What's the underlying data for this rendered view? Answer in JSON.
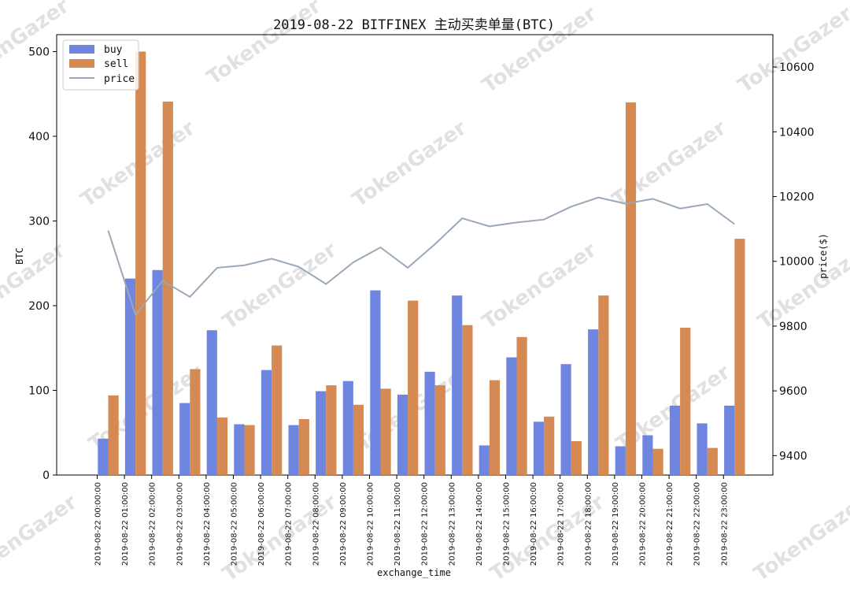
{
  "watermark": "TokenGazer",
  "colors": {
    "buy": "#6f86e0",
    "sell": "#d48a52",
    "price": "#9aa8b8"
  },
  "chart_data": {
    "type": "bar",
    "title": "2019-08-22 BITFINEX 主动买卖单量(BTC)",
    "xlabel": "exchange_time",
    "ylabel": "BTC",
    "y2label": "price($)",
    "ylim": [
      0,
      520
    ],
    "y2lim": [
      9340,
      10700
    ],
    "yticks": [
      0,
      100,
      200,
      300,
      400,
      500
    ],
    "y2ticks": [
      9400,
      9600,
      9800,
      10000,
      10200,
      10400,
      10600
    ],
    "legend_position": "top-left",
    "categories": [
      "2019-08-22 00:00:00",
      "2019-08-22 01:00:00",
      "2019-08-22 02:00:00",
      "2019-08-22 03:00:00",
      "2019-08-22 04:00:00",
      "2019-08-22 05:00:00",
      "2019-08-22 06:00:00",
      "2019-08-22 07:00:00",
      "2019-08-22 08:00:00",
      "2019-08-22 09:00:00",
      "2019-08-22 10:00:00",
      "2019-08-22 11:00:00",
      "2019-08-22 12:00:00",
      "2019-08-22 13:00:00",
      "2019-08-22 14:00:00",
      "2019-08-22 15:00:00",
      "2019-08-22 16:00:00",
      "2019-08-22 17:00:00",
      "2019-08-22 18:00:00",
      "2019-08-22 19:00:00",
      "2019-08-22 20:00:00",
      "2019-08-22 21:00:00",
      "2019-08-22 22:00:00",
      "2019-08-22 23:00:00"
    ],
    "series": [
      {
        "name": "buy",
        "type": "bar",
        "axis": "left",
        "values": [
          43,
          232,
          242,
          85,
          171,
          60,
          124,
          59,
          99,
          111,
          218,
          95,
          122,
          212,
          35,
          139,
          63,
          131,
          172,
          34,
          47,
          82,
          61,
          82
        ]
      },
      {
        "name": "sell",
        "type": "bar",
        "axis": "left",
        "values": [
          94,
          500,
          441,
          125,
          68,
          59,
          153,
          66,
          106,
          83,
          102,
          206,
          106,
          177,
          112,
          163,
          69,
          40,
          212,
          440,
          31,
          174,
          32,
          279
        ]
      },
      {
        "name": "price",
        "type": "line",
        "axis": "right",
        "values": [
          10095,
          9835,
          9940,
          9890,
          9980,
          9988,
          10008,
          9983,
          9930,
          9997,
          10043,
          9980,
          10053,
          10133,
          10108,
          10120,
          10129,
          10169,
          10197,
          10178,
          10193,
          10163,
          10177,
          10115
        ]
      }
    ]
  }
}
